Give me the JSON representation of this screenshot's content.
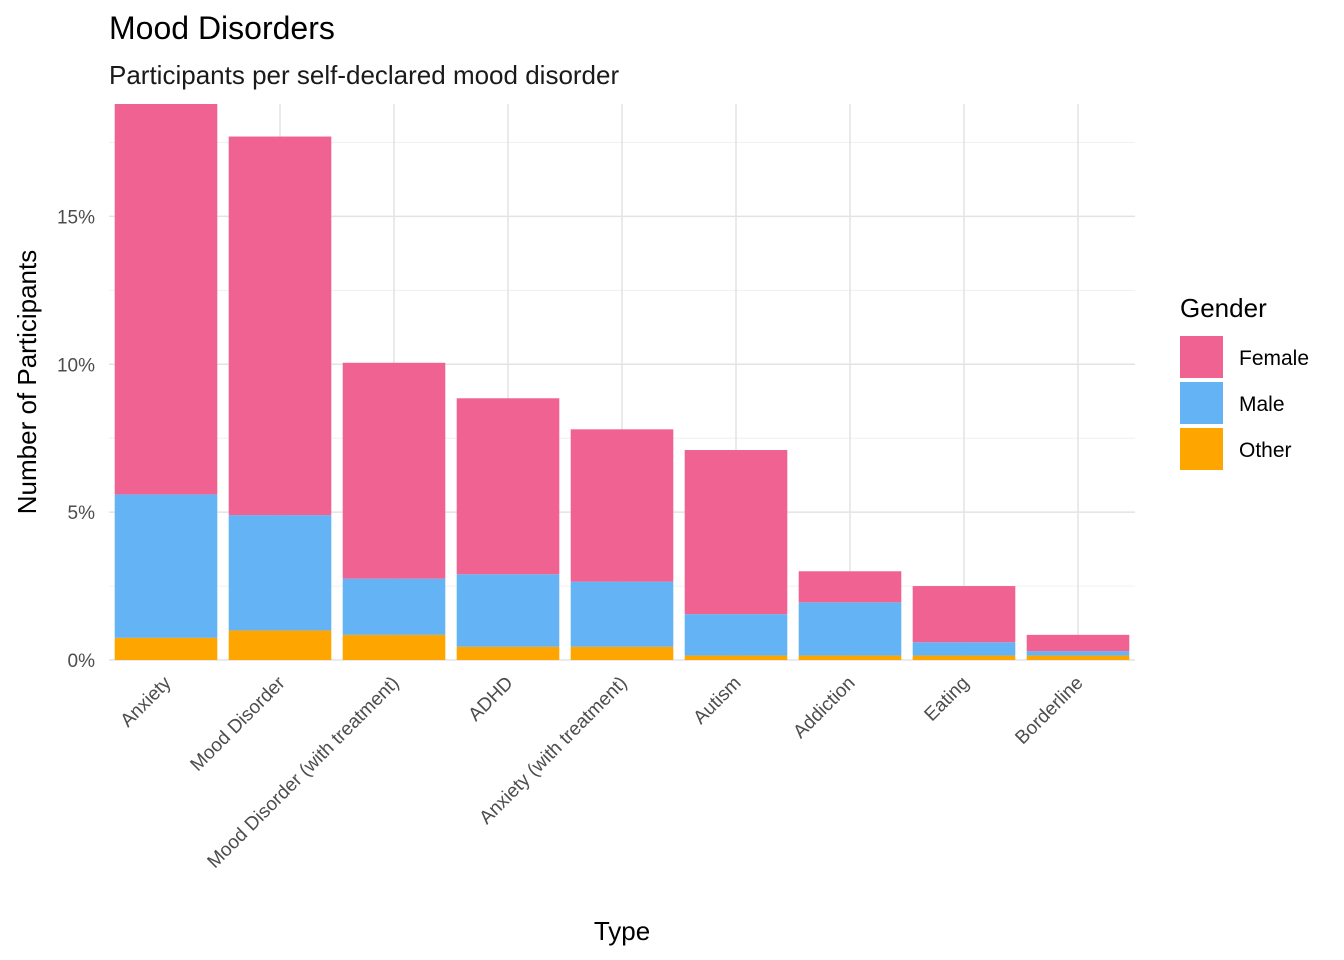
{
  "chart_data": {
    "type": "bar",
    "stacked": true,
    "title": "Mood Disorders",
    "subtitle": "Participants per self-declared mood disorder",
    "xlabel": "Type",
    "ylabel": "Number of Participants",
    "ylim": [
      0,
      18.8
    ],
    "yticks": [
      0,
      5,
      10,
      15
    ],
    "ytick_labels": [
      "0%",
      "5%",
      "10%",
      "15%"
    ],
    "grid": true,
    "categories": [
      "Anxiety",
      "Mood Disorder",
      "Mood Disorder (with treatment)",
      "ADHD",
      "Anxiety (with treatment)",
      "Autism",
      "Addiction",
      "Eating",
      "Borderline"
    ],
    "series": [
      {
        "name": "Other",
        "color": "#FFA500",
        "values": [
          0.75,
          1.0,
          0.85,
          0.45,
          0.45,
          0.15,
          0.15,
          0.15,
          0.15
        ]
      },
      {
        "name": "Male",
        "color": "#63B3F5",
        "values": [
          4.85,
          3.9,
          1.9,
          2.45,
          2.2,
          1.4,
          1.8,
          0.45,
          0.15
        ]
      },
      {
        "name": "Female",
        "color": "#F06292",
        "values": [
          13.2,
          12.8,
          7.3,
          5.95,
          5.15,
          5.55,
          1.05,
          1.9,
          0.55
        ]
      }
    ],
    "legend": {
      "title": "Gender",
      "placement": "right",
      "order": [
        "Female",
        "Male",
        "Other"
      ]
    }
  }
}
